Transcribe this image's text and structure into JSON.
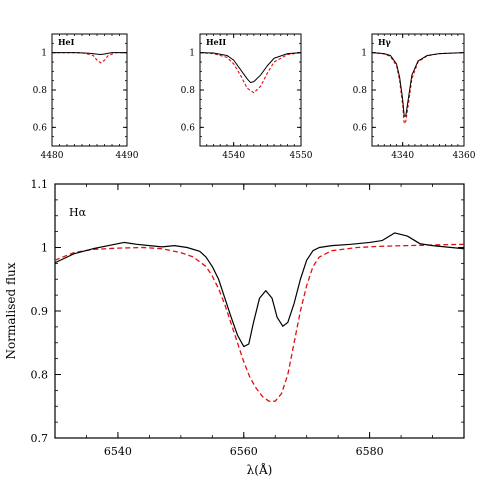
{
  "chart_data": [
    {
      "type": "line",
      "panel_label": "HeI",
      "xlim": [
        4480,
        4490
      ],
      "xticks": [
        "4480",
        "4490"
      ],
      "ylim": [
        0.5,
        1.1
      ],
      "yticks": [
        "0.6",
        "0.8",
        "1"
      ],
      "colors": {
        "observed": "#000000",
        "model": "#e01010"
      },
      "series": [
        {
          "style": "solid",
          "x": [
            4480,
            4483,
            4485,
            4486,
            4486.5,
            4487,
            4487.5,
            4488,
            4490
          ],
          "y": [
            1.0,
            1.0,
            0.997,
            0.992,
            0.99,
            0.993,
            0.997,
            1.0,
            1.0
          ]
        },
        {
          "style": "dashed",
          "x": [
            4480,
            4484,
            4485.5,
            4486,
            4486.5,
            4487,
            4487.5,
            4488.5,
            4490
          ],
          "y": [
            1.0,
            1.0,
            0.985,
            0.96,
            0.945,
            0.96,
            0.985,
            1.0,
            1.0
          ]
        }
      ]
    },
    {
      "type": "line",
      "panel_label": "HeII",
      "xlim": [
        4535,
        4550
      ],
      "xticks": [
        "4540",
        "4550"
      ],
      "ylim": [
        0.5,
        1.1
      ],
      "yticks": [
        "0.6",
        "0.8",
        "1"
      ],
      "colors": {
        "observed": "#000000",
        "model": "#e01010"
      },
      "series": [
        {
          "style": "solid",
          "x": [
            4535,
            4537,
            4539,
            4540,
            4541,
            4542,
            4542.5,
            4543,
            4544,
            4545,
            4546,
            4548,
            4550
          ],
          "y": [
            1.0,
            0.998,
            0.985,
            0.96,
            0.91,
            0.86,
            0.84,
            0.845,
            0.88,
            0.93,
            0.97,
            0.995,
            1.0
          ]
        },
        {
          "style": "dashed",
          "x": [
            4535,
            4537,
            4539,
            4540,
            4541,
            4542,
            4543,
            4544,
            4545,
            4546,
            4548,
            4550
          ],
          "y": [
            1.0,
            0.995,
            0.975,
            0.94,
            0.88,
            0.81,
            0.785,
            0.82,
            0.89,
            0.95,
            0.99,
            1.0
          ]
        }
      ]
    },
    {
      "type": "line",
      "panel_label": "Hγ",
      "xlim": [
        4330,
        4360
      ],
      "xticks": [
        "4340",
        "4360"
      ],
      "ylim": [
        0.5,
        1.1
      ],
      "yticks": [
        "0.6",
        "0.8",
        "1"
      ],
      "colors": {
        "observed": "#000000",
        "model": "#e01010"
      },
      "series": [
        {
          "style": "solid",
          "x": [
            4330,
            4334,
            4336,
            4338,
            4339,
            4340,
            4340.5,
            4341,
            4342,
            4343,
            4345,
            4348,
            4352,
            4360
          ],
          "y": [
            1.0,
            0.995,
            0.985,
            0.94,
            0.87,
            0.75,
            0.66,
            0.66,
            0.77,
            0.88,
            0.955,
            0.985,
            0.995,
            1.0
          ]
        },
        {
          "style": "dashed",
          "x": [
            4330,
            4334,
            4336,
            4338,
            4339,
            4340,
            4340.5,
            4341,
            4342,
            4343,
            4345,
            4348,
            4352,
            4360
          ],
          "y": [
            1.0,
            0.993,
            0.98,
            0.93,
            0.85,
            0.72,
            0.62,
            0.63,
            0.74,
            0.86,
            0.95,
            0.983,
            0.995,
            1.0
          ]
        }
      ]
    },
    {
      "type": "line",
      "panel_label": "Hα",
      "xlabel": "λ(Å)",
      "ylabel": "Normalised flux",
      "xlim": [
        6530,
        6595
      ],
      "xticks": [
        "6540",
        "6560",
        "6580"
      ],
      "ylim": [
        0.7,
        1.1
      ],
      "yticks": [
        "0.7",
        "0.8",
        "0.9",
        "1",
        "1.1"
      ],
      "colors": {
        "observed": "#000000",
        "model": "#e01010"
      },
      "series": [
        {
          "style": "solid",
          "x": [
            6530,
            6533,
            6536,
            6539,
            6541,
            6543,
            6545,
            6547,
            6549,
            6551,
            6553,
            6554,
            6555,
            6556,
            6557,
            6558,
            6559,
            6560,
            6560.8,
            6561.5,
            6562.5,
            6563.5,
            6564.5,
            6565.3,
            6566.2,
            6567,
            6568,
            6569,
            6570,
            6571,
            6572,
            6574,
            6577,
            6580,
            6582,
            6584,
            6586,
            6588,
            6590,
            6593,
            6595
          ],
          "y": [
            0.976,
            0.99,
            0.998,
            1.004,
            1.008,
            1.005,
            1.003,
            1.001,
            1.003,
            1.0,
            0.994,
            0.985,
            0.97,
            0.95,
            0.92,
            0.89,
            0.862,
            0.844,
            0.848,
            0.88,
            0.92,
            0.932,
            0.92,
            0.89,
            0.876,
            0.882,
            0.912,
            0.95,
            0.98,
            0.995,
            1.0,
            1.003,
            1.005,
            1.008,
            1.011,
            1.023,
            1.018,
            1.006,
            1.003,
            1.0,
            0.998
          ]
        },
        {
          "style": "dashed",
          "x": [
            6530,
            6533,
            6536,
            6540,
            6544,
            6547,
            6550,
            6552,
            6554,
            6555,
            6556,
            6557,
            6558,
            6559,
            6560,
            6561,
            6562,
            6563,
            6564,
            6565,
            6566,
            6567,
            6568,
            6569,
            6570,
            6571,
            6572,
            6574,
            6578,
            6582,
            6586,
            6590,
            6595
          ],
          "y": [
            0.98,
            0.992,
            0.997,
            0.999,
            1.0,
            0.998,
            0.992,
            0.985,
            0.97,
            0.955,
            0.935,
            0.91,
            0.88,
            0.85,
            0.82,
            0.795,
            0.778,
            0.765,
            0.758,
            0.758,
            0.77,
            0.8,
            0.85,
            0.9,
            0.94,
            0.97,
            0.985,
            0.995,
            1.0,
            1.002,
            1.003,
            1.004,
            1.005
          ]
        }
      ]
    }
  ]
}
